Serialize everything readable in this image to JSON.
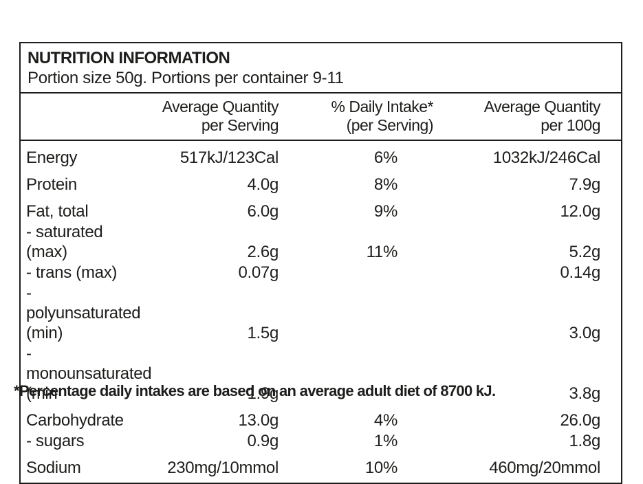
{
  "colors": {
    "text": "#1d1d1b",
    "border": "#1d1d1b",
    "background": "#ffffff"
  },
  "panel": {
    "title": "NUTRITION INFORMATION",
    "subtitle": "Portion size 50g. Portions per container 9-11",
    "columns": {
      "serving_line1": "Average Quantity",
      "serving_line2": "per Serving",
      "daily_line1": "% Daily Intake*",
      "daily_line2": "(per Serving)",
      "per100_line1": "Average Quantity",
      "per100_line2": "per 100g"
    },
    "rows": [
      {
        "name": "Energy",
        "serving": "517kJ/123Cal",
        "daily": "6%",
        "per100": "1032kJ/246Cal"
      },
      {
        "name": "Protein",
        "serving": "4.0g",
        "daily": "8%",
        "per100": "7.9g"
      },
      {
        "name": "Fat, total",
        "serving": "6.0g",
        "daily": "9%",
        "per100": "12.0g"
      },
      {
        "name": "- saturated (max)",
        "serving": "2.6g",
        "daily": "11%",
        "per100": "5.2g"
      },
      {
        "name": "- trans (max)",
        "serving": "0.07g",
        "daily": "",
        "per100": "0.14g"
      },
      {
        "name": "- polyunsaturated (min)",
        "serving": "1.5g",
        "daily": "",
        "per100": "3.0g"
      },
      {
        "name": "- monounsaturated (min",
        "serving": "1.9g",
        "daily": "",
        "per100": "3.8g"
      },
      {
        "name": "Carbohydrate",
        "serving": "13.0g",
        "daily": "4%",
        "per100": "26.0g"
      },
      {
        "name": "- sugars",
        "serving": "0.9g",
        "daily": "1%",
        "per100": "1.8g"
      },
      {
        "name": "Sodium",
        "serving": "230mg/10mmol",
        "daily": "10%",
        "per100": "460mg/20mmol"
      }
    ],
    "footnote": "*Percentage daily intakes are based on an average adult diet of 8700 kJ."
  }
}
